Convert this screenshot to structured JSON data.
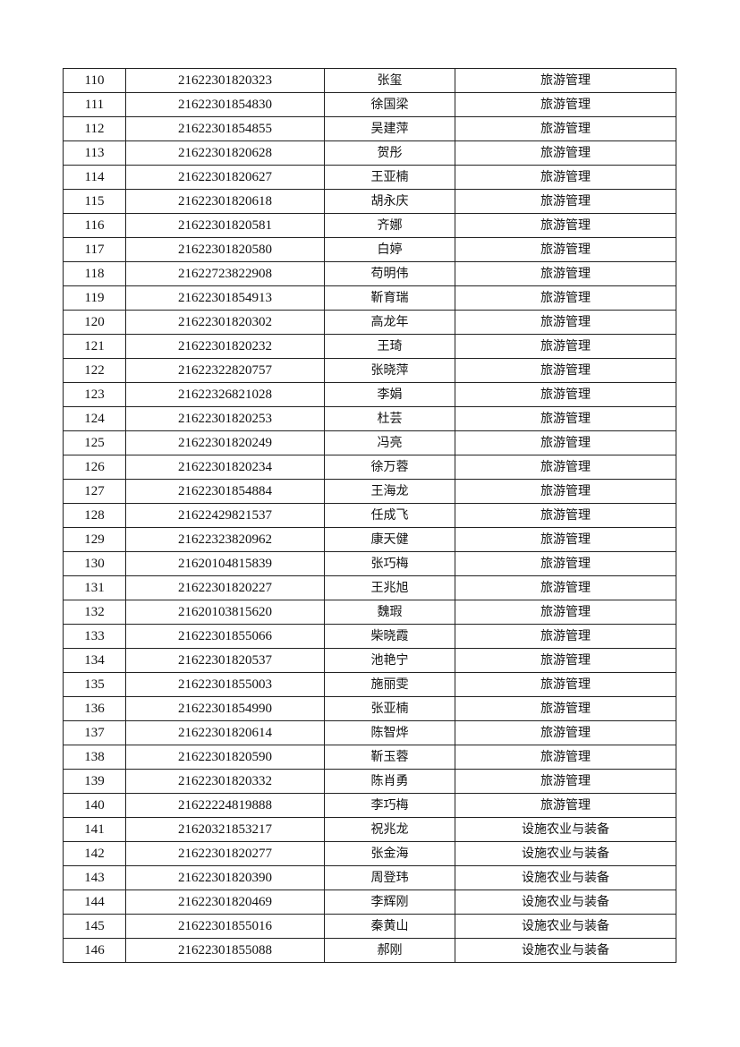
{
  "rows": [
    [
      "110",
      "21622301820323",
      "张玺",
      "旅游管理"
    ],
    [
      "111",
      "21622301854830",
      "徐国梁",
      "旅游管理"
    ],
    [
      "112",
      "21622301854855",
      "吴建萍",
      "旅游管理"
    ],
    [
      "113",
      "21622301820628",
      "贺彤",
      "旅游管理"
    ],
    [
      "114",
      "21622301820627",
      "王亚楠",
      "旅游管理"
    ],
    [
      "115",
      "21622301820618",
      "胡永庆",
      "旅游管理"
    ],
    [
      "116",
      "21622301820581",
      "齐娜",
      "旅游管理"
    ],
    [
      "117",
      "21622301820580",
      "白婷",
      "旅游管理"
    ],
    [
      "118",
      "21622723822908",
      "苟明伟",
      "旅游管理"
    ],
    [
      "119",
      "21622301854913",
      "靳育瑞",
      "旅游管理"
    ],
    [
      "120",
      "21622301820302",
      "高龙年",
      "旅游管理"
    ],
    [
      "121",
      "21622301820232",
      "王琦",
      "旅游管理"
    ],
    [
      "122",
      "21622322820757",
      "张晓萍",
      "旅游管理"
    ],
    [
      "123",
      "21622326821028",
      "李娟",
      "旅游管理"
    ],
    [
      "124",
      "21622301820253",
      "杜芸",
      "旅游管理"
    ],
    [
      "125",
      "21622301820249",
      "冯亮",
      "旅游管理"
    ],
    [
      "126",
      "21622301820234",
      "徐万蓉",
      "旅游管理"
    ],
    [
      "127",
      "21622301854884",
      "王海龙",
      "旅游管理"
    ],
    [
      "128",
      "21622429821537",
      "任成飞",
      "旅游管理"
    ],
    [
      "129",
      "21622323820962",
      "康天健",
      "旅游管理"
    ],
    [
      "130",
      "21620104815839",
      "张巧梅",
      "旅游管理"
    ],
    [
      "131",
      "21622301820227",
      "王兆旭",
      "旅游管理"
    ],
    [
      "132",
      "21620103815620",
      "魏瑕",
      "旅游管理"
    ],
    [
      "133",
      "21622301855066",
      "柴晓霞",
      "旅游管理"
    ],
    [
      "134",
      "21622301820537",
      "池艳宁",
      "旅游管理"
    ],
    [
      "135",
      "21622301855003",
      "施丽雯",
      "旅游管理"
    ],
    [
      "136",
      "21622301854990",
      "张亚楠",
      "旅游管理"
    ],
    [
      "137",
      "21622301820614",
      "陈智烨",
      "旅游管理"
    ],
    [
      "138",
      "21622301820590",
      "靳玉蓉",
      "旅游管理"
    ],
    [
      "139",
      "21622301820332",
      "陈肖勇",
      "旅游管理"
    ],
    [
      "140",
      "21622224819888",
      "李巧梅",
      "旅游管理"
    ],
    [
      "141",
      "21620321853217",
      "祝兆龙",
      "设施农业与装备"
    ],
    [
      "142",
      "21622301820277",
      "张金海",
      "设施农业与装备"
    ],
    [
      "143",
      "21622301820390",
      "周登玮",
      "设施农业与装备"
    ],
    [
      "144",
      "21622301820469",
      "李辉刚",
      "设施农业与装备"
    ],
    [
      "145",
      "21622301855016",
      "秦黄山",
      "设施农业与装备"
    ],
    [
      "146",
      "21622301855088",
      "郝刚",
      "设施农业与装备"
    ]
  ]
}
